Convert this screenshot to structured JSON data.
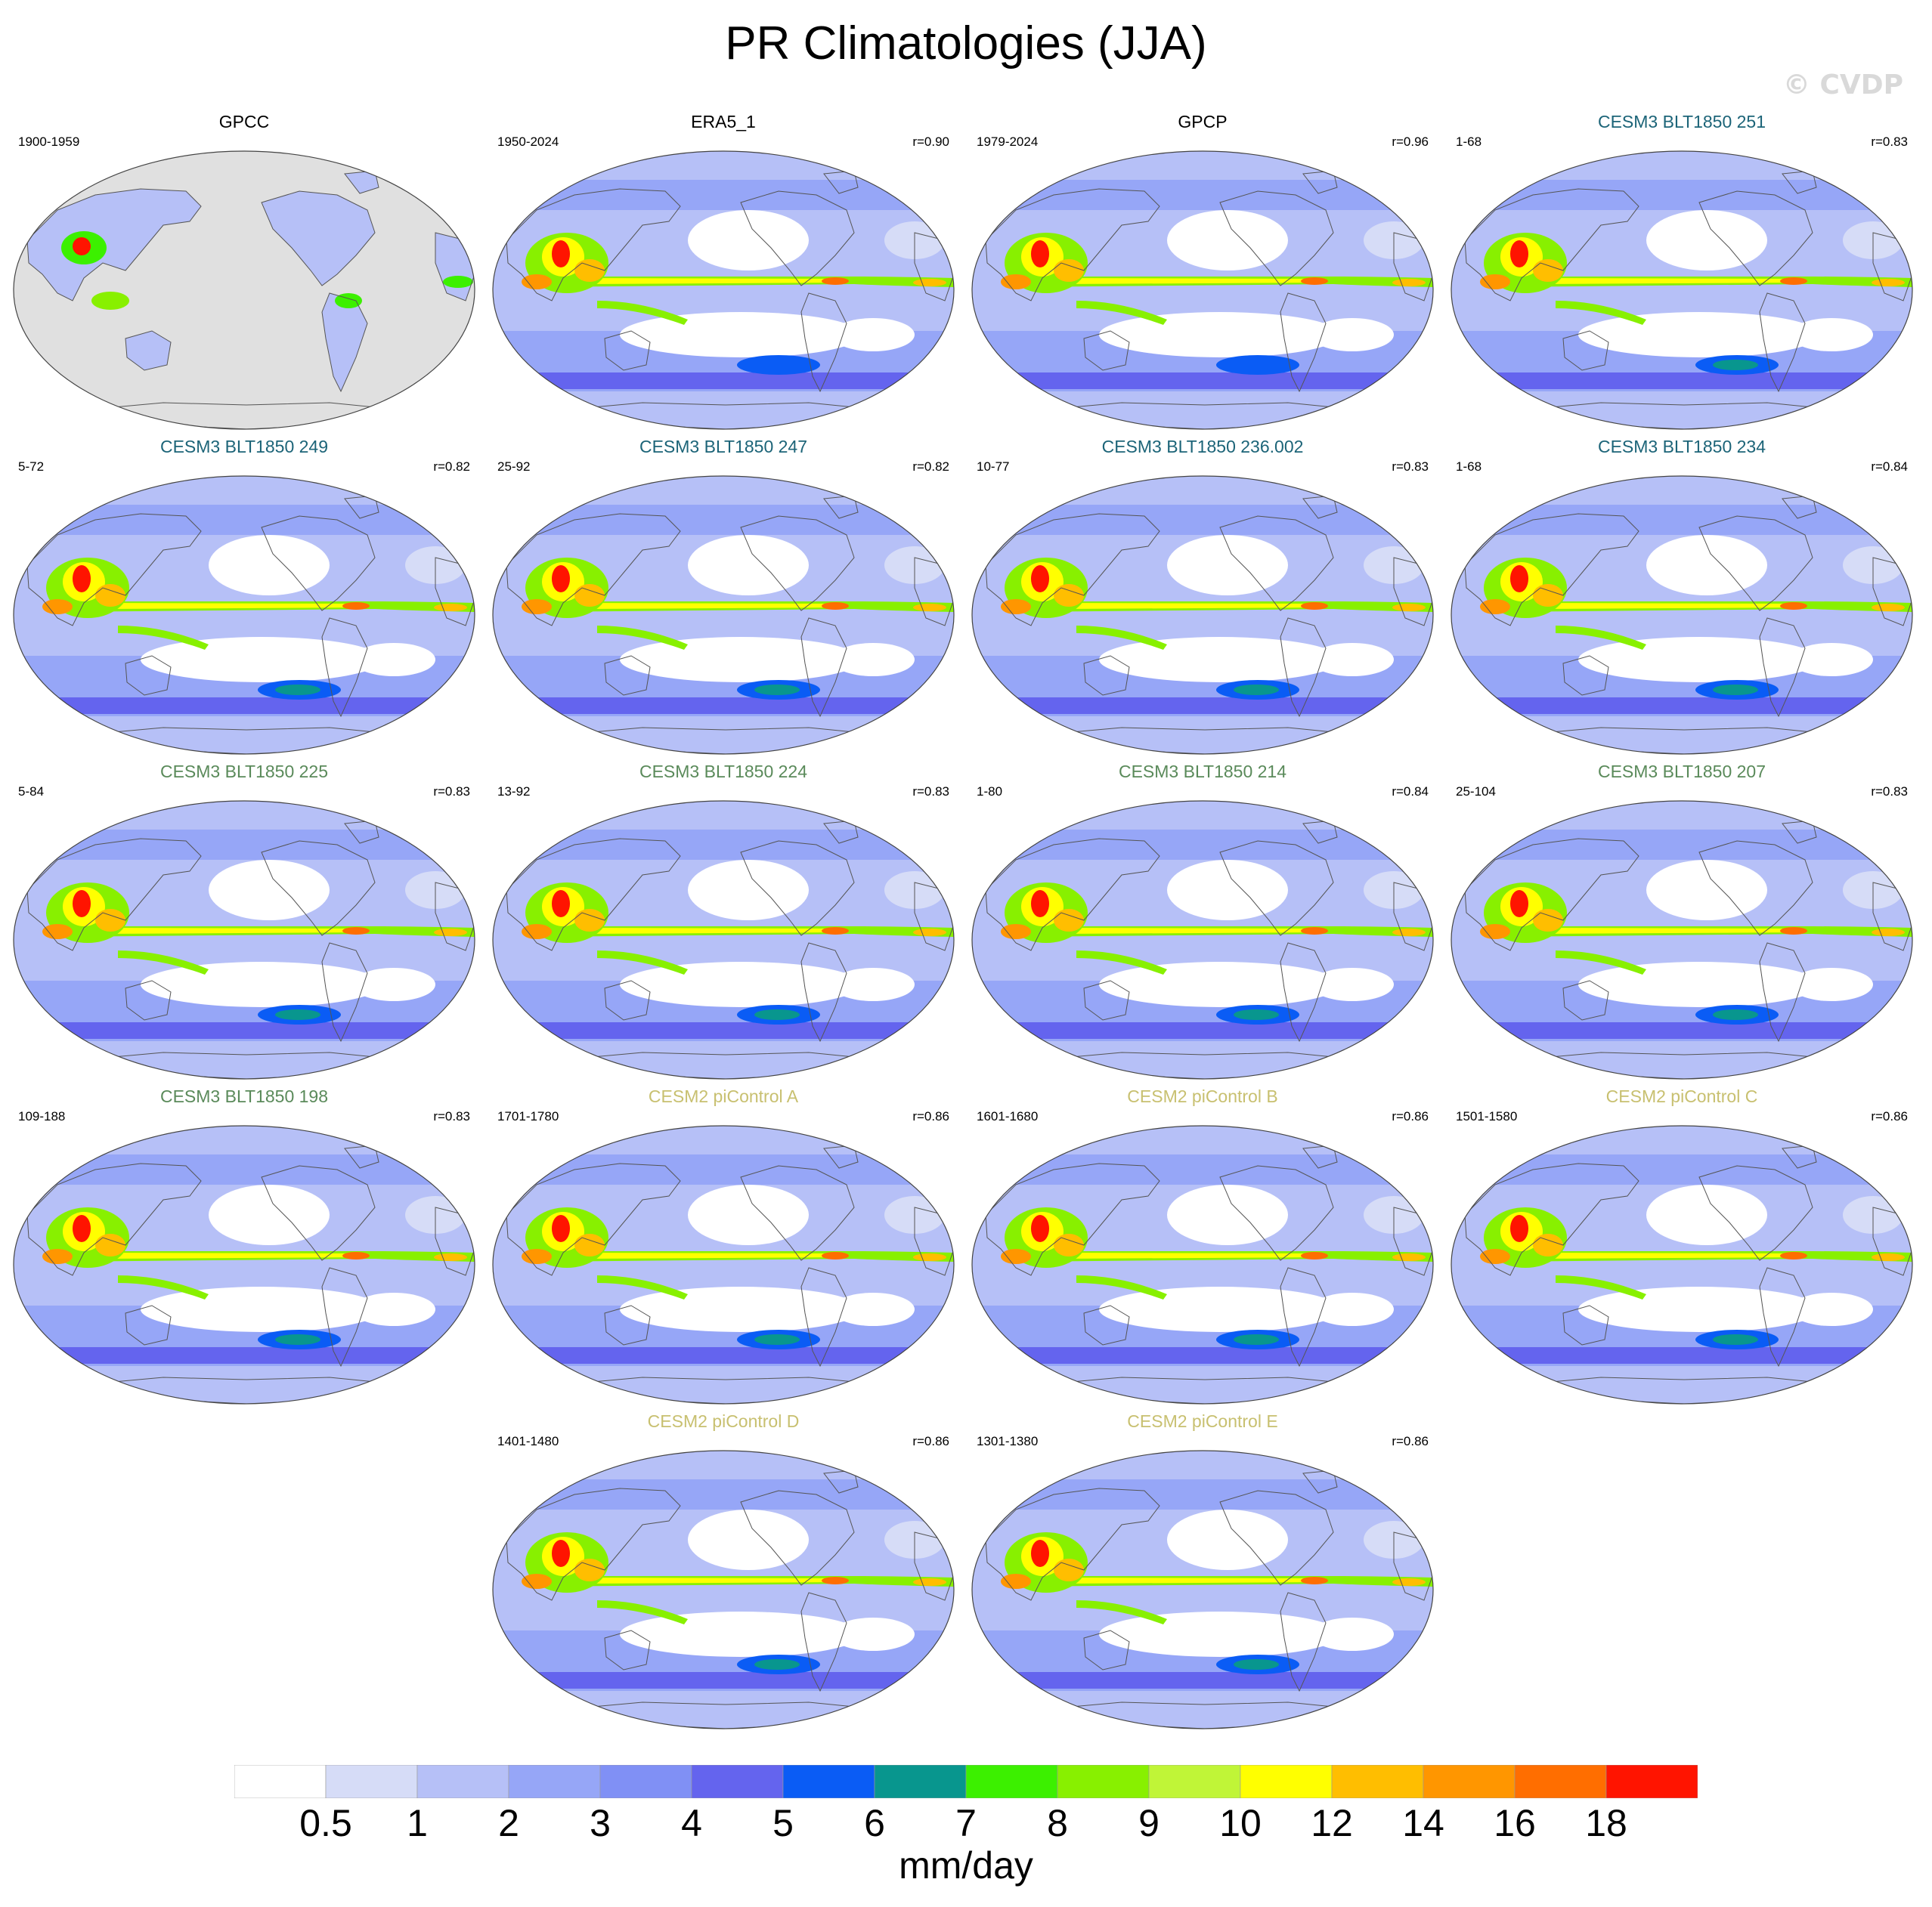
{
  "title": "PR Climatologies (JJA)",
  "watermark": "© CVDP",
  "colors": {
    "obs_title": "#000000",
    "cesm3_dark": "#1c6478",
    "cesm3_green": "#5a8a5a",
    "cesm2": "#c8c070"
  },
  "panels": [
    {
      "name": "GPCC",
      "period": "1900-1959",
      "r": "",
      "style": "gpcc",
      "title_color": "#000000"
    },
    {
      "name": "ERA5_1",
      "period": "1950-2024",
      "r": "r=0.90",
      "style": "obs",
      "title_color": "#000000"
    },
    {
      "name": "GPCP",
      "period": "1979-2024",
      "r": "r=0.96",
      "style": "obs",
      "title_color": "#000000"
    },
    {
      "name": "CESM3 BLT1850 251",
      "period": "1-68",
      "r": "r=0.83",
      "style": "model",
      "title_color": "#1c6478"
    },
    {
      "name": "CESM3 BLT1850 249",
      "period": "5-72",
      "r": "r=0.82",
      "style": "model",
      "title_color": "#1c6478"
    },
    {
      "name": "CESM3 BLT1850 247",
      "period": "25-92",
      "r": "r=0.82",
      "style": "model",
      "title_color": "#1c6478"
    },
    {
      "name": "CESM3 BLT1850 236.002",
      "period": "10-77",
      "r": "r=0.83",
      "style": "model",
      "title_color": "#1c6478"
    },
    {
      "name": "CESM3 BLT1850 234",
      "period": "1-68",
      "r": "r=0.84",
      "style": "model",
      "title_color": "#1c6478"
    },
    {
      "name": "CESM3 BLT1850 225",
      "period": "5-84",
      "r": "r=0.83",
      "style": "model",
      "title_color": "#5a8a5a"
    },
    {
      "name": "CESM3 BLT1850 224",
      "period": "13-92",
      "r": "r=0.83",
      "style": "model",
      "title_color": "#5a8a5a"
    },
    {
      "name": "CESM3 BLT1850 214",
      "period": "1-80",
      "r": "r=0.84",
      "style": "model",
      "title_color": "#5a8a5a"
    },
    {
      "name": "CESM3 BLT1850 207",
      "period": "25-104",
      "r": "r=0.83",
      "style": "model",
      "title_color": "#5a8a5a"
    },
    {
      "name": "CESM3 BLT1850 198",
      "period": "109-188",
      "r": "r=0.83",
      "style": "model",
      "title_color": "#5a8a5a"
    },
    {
      "name": "CESM2 piControl A",
      "period": "1701-1780",
      "r": "r=0.86",
      "style": "model",
      "title_color": "#c8c070"
    },
    {
      "name": "CESM2 piControl B",
      "period": "1601-1680",
      "r": "r=0.86",
      "style": "model",
      "title_color": "#c8c070"
    },
    {
      "name": "CESM2 piControl C",
      "period": "1501-1580",
      "r": "r=0.86",
      "style": "model",
      "title_color": "#c8c070"
    },
    {
      "name": "CESM2 piControl D",
      "period": "1401-1480",
      "r": "r=0.86",
      "style": "model",
      "title_color": "#c8c070"
    },
    {
      "name": "CESM2 piControl E",
      "period": "1301-1380",
      "r": "r=0.86",
      "style": "model",
      "title_color": "#c8c070"
    }
  ],
  "colorbar": {
    "colors": [
      "#ffffff",
      "#d6dcf7",
      "#b6c0f7",
      "#96a6f7",
      "#8090f5",
      "#6464ee",
      "#0a5cf5",
      "#08968e",
      "#3cf000",
      "#88f000",
      "#c0f537",
      "#ffff00",
      "#ffbe00",
      "#ff9600",
      "#ff6e00",
      "#ff1400"
    ],
    "ticks": [
      "0.5",
      "1",
      "2",
      "3",
      "4",
      "5",
      "6",
      "7",
      "8",
      "9",
      "10",
      "12",
      "14",
      "16",
      "18"
    ],
    "unit": "mm/day"
  }
}
